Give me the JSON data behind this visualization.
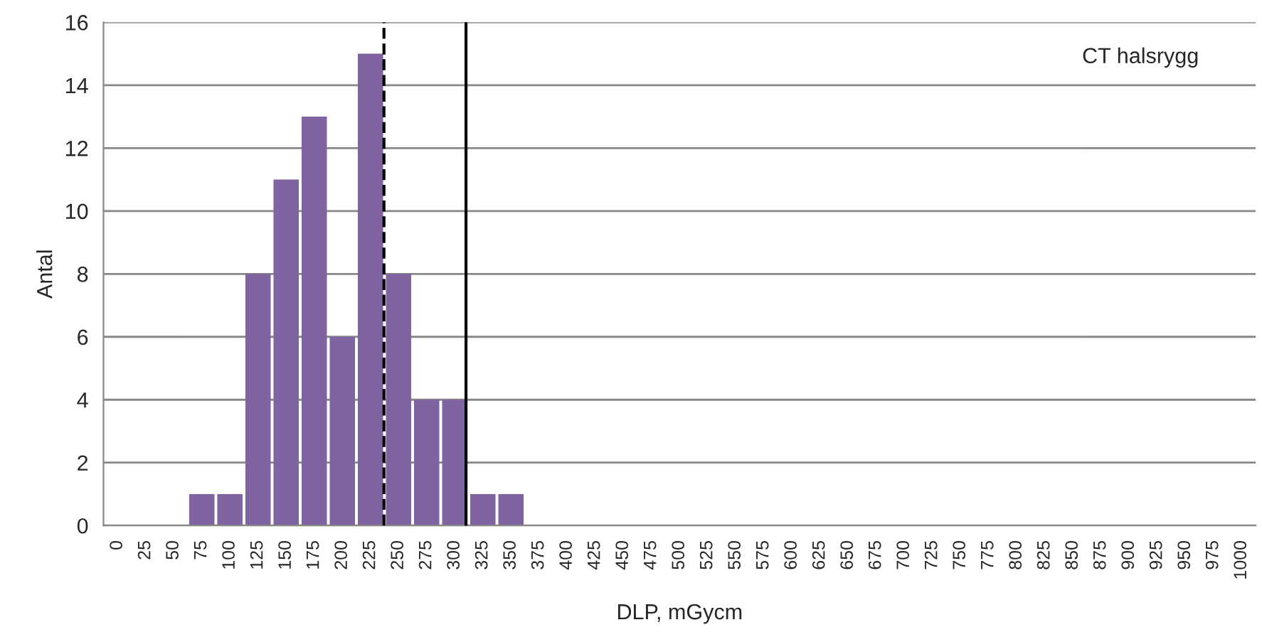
{
  "chart_data": {
    "type": "bar",
    "xlabel": "DLP, mGycm",
    "ylabel": "Antal",
    "annotations": [
      "CT halsrygg"
    ],
    "x": [
      0,
      25,
      50,
      75,
      100,
      125,
      150,
      175,
      200,
      225,
      250,
      275,
      300,
      325,
      350,
      375,
      400,
      425,
      450,
      475,
      500,
      525,
      550,
      575,
      600,
      625,
      650,
      675,
      700,
      725,
      750,
      775,
      800,
      825,
      850,
      875,
      900,
      925,
      950,
      975,
      1000
    ],
    "values": [
      0,
      0,
      0,
      1,
      1,
      8,
      11,
      13,
      6,
      15,
      8,
      4,
      4,
      1,
      1,
      0,
      0,
      0,
      0,
      0,
      0,
      0,
      0,
      0,
      0,
      0,
      0,
      0,
      0,
      0,
      0,
      0,
      0,
      0,
      0,
      0,
      0,
      0,
      0,
      0,
      0
    ],
    "color": "#8064a2",
    "xlim": [
      -12.5,
      1012.5
    ],
    "xticks": [
      0,
      25,
      50,
      75,
      100,
      125,
      150,
      175,
      200,
      225,
      250,
      275,
      300,
      325,
      350,
      375,
      400,
      425,
      450,
      475,
      500,
      525,
      550,
      575,
      600,
      625,
      650,
      675,
      700,
      725,
      750,
      775,
      800,
      825,
      850,
      875,
      900,
      925,
      950,
      975,
      1000
    ],
    "ylim": [
      0,
      16
    ],
    "yticks": [
      0,
      2,
      4,
      6,
      8,
      10,
      12,
      14,
      16
    ],
    "grid": "y",
    "ref_lines": [
      {
        "axis": "x",
        "value": 237,
        "color": "#000000",
        "line_style": "dashed"
      },
      {
        "axis": "x",
        "value": 310,
        "color": "#000000",
        "line_style": "solid"
      }
    ]
  }
}
